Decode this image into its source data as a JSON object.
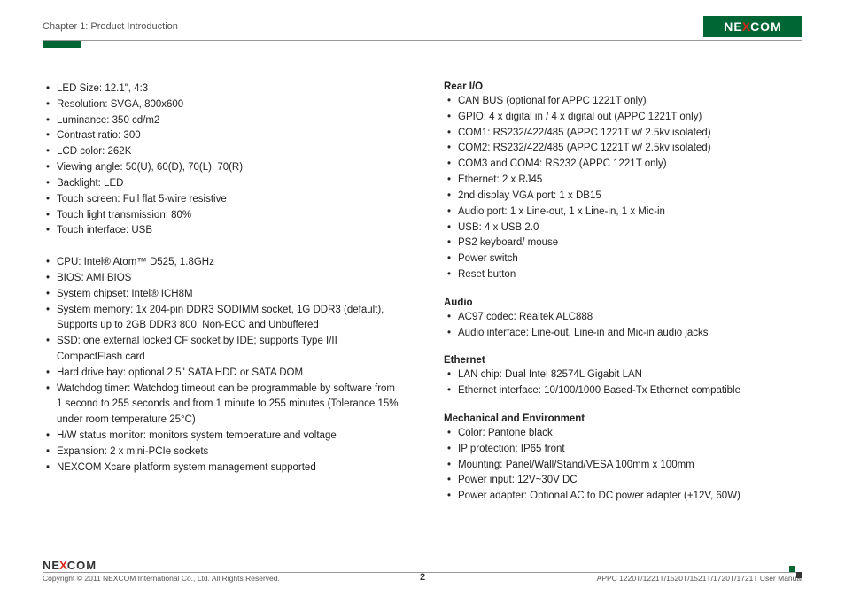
{
  "header": {
    "chapter": "Chapter 1: Product Introduction",
    "logo_left": "NE",
    "logo_x": "X",
    "logo_right": "COM"
  },
  "left_col": {
    "group1": [
      "LED Size: 12.1\", 4:3",
      "Resolution: SVGA, 800x600",
      "Luminance: 350 cd/m2",
      "Contrast ratio: 300",
      "LCD color: 262K",
      "Viewing angle: 50(U), 60(D), 70(L), 70(R)",
      "Backlight: LED",
      "Touch screen: Full flat 5-wire resistive",
      "Touch light transmission: 80%",
      "Touch interface: USB"
    ],
    "group2": [
      "CPU: Intel® Atom™ D525, 1.8GHz",
      "BIOS: AMI BIOS",
      "System chipset: Intel® ICH8M",
      "System memory: 1x 204-pin DDR3 SODIMM socket, 1G DDR3 (default), Supports up to 2GB DDR3 800, Non-ECC and Unbuffered",
      "SSD: one external locked CF socket by IDE; supports Type I/II CompactFlash card",
      "Hard drive bay: optional 2.5\" SATA HDD or SATA DOM",
      "Watchdog timer: Watchdog timeout can be programmable by software from 1 second to 255 seconds and from 1 minute to 255 minutes (Tolerance 15% under room temperature 25°C)",
      "H/W status monitor: monitors system temperature and voltage",
      "Expansion: 2 x mini-PCIe sockets",
      "NEXCOM Xcare platform system management supported"
    ]
  },
  "right_col": {
    "rear_io_title": "Rear I/O",
    "rear_io": [
      "CAN BUS (optional for APPC 1221T only)",
      "GPIO: 4 x digital in / 4 x digital out (APPC 1221T only)",
      "COM1: RS232/422/485 (APPC 1221T w/ 2.5kv isolated)",
      "COM2: RS232/422/485 (APPC 1221T w/ 2.5kv isolated)",
      "COM3 and COM4: RS232 (APPC 1221T only)",
      "Ethernet: 2 x RJ45",
      "2nd display VGA port: 1 x DB15",
      "Audio port: 1 x Line-out, 1 x Line-in, 1 x Mic-in",
      "USB: 4 x USB 2.0",
      "PS2 keyboard/ mouse",
      "Power switch",
      "Reset button"
    ],
    "audio_title": "Audio",
    "audio": [
      "AC97 codec: Realtek ALC888",
      "Audio interface: Line-out, Line-in and Mic-in audio jacks"
    ],
    "ethernet_title": "Ethernet",
    "ethernet": [
      "LAN chip: Dual Intel 82574L Gigabit LAN",
      "Ethernet interface: 10/100/1000 Based-Tx Ethernet compatible"
    ],
    "mech_title": "Mechanical and Environment",
    "mech": [
      "Color: Pantone black",
      "IP protection: IP65 front",
      "Mounting: Panel/Wall/Stand/VESA 100mm x 100mm",
      "Power input: 12V~30V DC",
      "Power adapter: Optional AC to DC power adapter (+12V, 60W)"
    ]
  },
  "footer": {
    "copyright": "Copyright © 2011 NEXCOM International Co., Ltd. All Rights Reserved.",
    "page": "2",
    "manual": "APPC 1220T/1221T/1520T/1521T/1720T/1721T User Manual"
  }
}
